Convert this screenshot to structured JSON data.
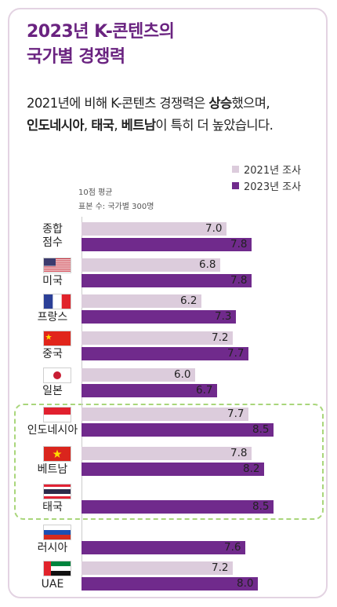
{
  "title_lines": [
    "2023년 K-콘텐츠의",
    "국가별 경쟁력"
  ],
  "subtitle": {
    "line1": {
      "a": "2021년에 비해 K-콘텐츠 경쟁력은 ",
      "b": "상승",
      "c": "했으며,"
    },
    "line2": {
      "a": "인도네시아",
      "b": ", ",
      "c": "태국",
      "d": ", ",
      "e": "베트남",
      "f": "이 특히 더 높았습니다."
    }
  },
  "notes": {
    "scale": "10점 평균",
    "sample": "표본 수: 국가별 300명"
  },
  "colors": {
    "series_2021": "#dcccdc",
    "series_2023": "#702a8c",
    "title": "#6a2380",
    "highlight": "#a9d67b"
  },
  "chart_data": {
    "type": "bar",
    "orientation": "horizontal",
    "categories": [
      "종합 점수",
      "미국",
      "프랑스",
      "중국",
      "일본",
      "인도네시아",
      "베트남",
      "태국",
      "러시아",
      "UAE"
    ],
    "series": [
      {
        "name": "2021년 조사",
        "values": [
          7.0,
          6.8,
          6.2,
          7.2,
          6.0,
          7.7,
          7.8,
          null,
          null,
          7.2
        ],
        "labels": [
          "7.0",
          "6.8",
          "6.2",
          "7.2",
          "6.0",
          "7.7",
          "7.8",
          "",
          "",
          "7.2"
        ]
      },
      {
        "name": "2023년 조사",
        "values": [
          7.8,
          7.8,
          7.3,
          7.7,
          6.7,
          8.5,
          8.2,
          8.5,
          7.6,
          8.0
        ],
        "labels": [
          "7.8",
          "7.8",
          "7.3",
          "7.7",
          "6.7",
          "8.5",
          "8.2",
          "8.5",
          "7.6",
          "8.0"
        ]
      }
    ],
    "flags": [
      null,
      "us-flag",
      "fr-flag",
      "cn-flag",
      "jp-flag",
      "id-flag",
      "vn-flag",
      "th-flag",
      "ru-flag",
      "ae-flag"
    ],
    "xlim": [
      0,
      10
    ],
    "legend_position": "top-right",
    "highlighted_categories": [
      "인도네시아",
      "베트남",
      "태국"
    ]
  }
}
